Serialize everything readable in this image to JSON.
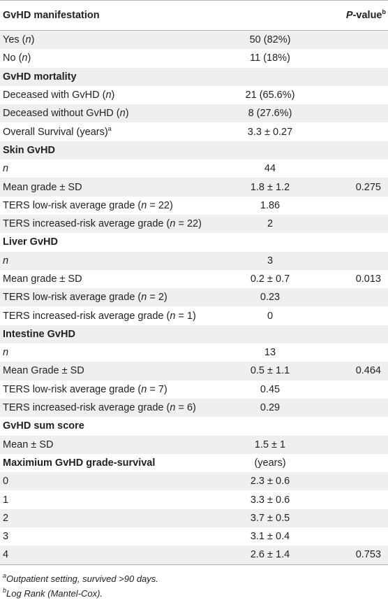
{
  "header": {
    "col1": "GvHD manifestation",
    "col3_main": "P",
    "col3_rest": "-value",
    "col3_sup": "b"
  },
  "rows": [
    {
      "type": "data",
      "c1": "Yes (",
      "c1_it": "n",
      "c1_end": ")",
      "c2": "50 (82%)",
      "c3": ""
    },
    {
      "type": "data",
      "c1": "No (",
      "c1_it": "n",
      "c1_end": ")",
      "c2": "11 (18%)",
      "c3": ""
    },
    {
      "type": "section",
      "c1": "GvHD mortality"
    },
    {
      "type": "data",
      "c1": "Deceased with GvHD (",
      "c1_it": "n",
      "c1_end": ")",
      "c2": "21 (65.6%)",
      "c3": ""
    },
    {
      "type": "data",
      "c1": "Deceased without GvHD (",
      "c1_it": "n",
      "c1_end": ")",
      "c2": "8 (27.6%)",
      "c3": ""
    },
    {
      "type": "data",
      "c1": "Overall Survival (years)",
      "c1_sup": "a",
      "c2": "3.3 ± 0.27",
      "c3": ""
    },
    {
      "type": "section",
      "c1": "Skin GvHD"
    },
    {
      "type": "data",
      "c1": "",
      "c1_it": "n",
      "c2": "44",
      "c3": ""
    },
    {
      "type": "data",
      "c1": "Mean grade ± SD",
      "c2": "1.8 ± 1.2",
      "c3": "0.275"
    },
    {
      "type": "data",
      "c1": "TERS low-risk average grade (",
      "c1_it": "n",
      "c1_end": " = 22)",
      "c2": "1.86",
      "c3": ""
    },
    {
      "type": "data",
      "c1": "TERS increased-risk average grade (",
      "c1_it": "n",
      "c1_end": " = 22)",
      "c2": "2",
      "c3": ""
    },
    {
      "type": "section",
      "c1": "Liver GvHD"
    },
    {
      "type": "data",
      "c1": "",
      "c1_it": "n",
      "c2": "3",
      "c3": ""
    },
    {
      "type": "data",
      "c1": "Mean grade ± SD",
      "c2": "0.2 ± 0.7",
      "c3": "0.013"
    },
    {
      "type": "data",
      "c1": "TERS low-risk average grade (",
      "c1_it": "n",
      "c1_end": " = 2)",
      "c2": "0.23",
      "c3": ""
    },
    {
      "type": "data",
      "c1": "TERS increased-risk average grade (",
      "c1_it": "n",
      "c1_end": " = 1)",
      "c2": "0",
      "c3": ""
    },
    {
      "type": "section",
      "c1": "Intestine GvHD"
    },
    {
      "type": "data",
      "c1": "",
      "c1_it": "n",
      "c2": "13",
      "c3": ""
    },
    {
      "type": "data",
      "c1": "Mean Grade ± SD",
      "c2": "0.5 ± 1.1",
      "c3": "0.464"
    },
    {
      "type": "data",
      "c1": "TERS low-risk average grade (",
      "c1_it": "n",
      "c1_end": " = 7)",
      "c2": "0.45",
      "c3": ""
    },
    {
      "type": "data",
      "c1": "TERS increased-risk average grade (",
      "c1_it": "n",
      "c1_end": " = 6)",
      "c2": "0.29",
      "c3": ""
    },
    {
      "type": "section",
      "c1": "GvHD sum score"
    },
    {
      "type": "data",
      "c1": "Mean ± SD",
      "c2": "1.5 ± 1",
      "c3": ""
    },
    {
      "type": "section",
      "c1": "Maximium GvHD grade-survival",
      "c2": "(years)"
    },
    {
      "type": "data",
      "c1": "0",
      "c2": "2.3 ± 0.6",
      "c3": ""
    },
    {
      "type": "data",
      "c1": "1",
      "c2": "3.3 ± 0.6",
      "c3": ""
    },
    {
      "type": "data",
      "c1": "2",
      "c2": "3.7 ± 0.5",
      "c3": ""
    },
    {
      "type": "data",
      "c1": "3",
      "c2": "3.1 ± 0.4",
      "c3": ""
    },
    {
      "type": "data",
      "c1": "4",
      "c2": "2.6 ± 1.4",
      "c3": "0.753"
    }
  ],
  "footnotes": [
    {
      "sup": "a",
      "text": "Outpatient setting, survived >90 days."
    },
    {
      "sup": "b",
      "text": "Log Rank (Mantel-Cox)."
    }
  ],
  "colors": {
    "band": "#efefef",
    "rule": "#b3b3b3",
    "text": "#231f20"
  }
}
